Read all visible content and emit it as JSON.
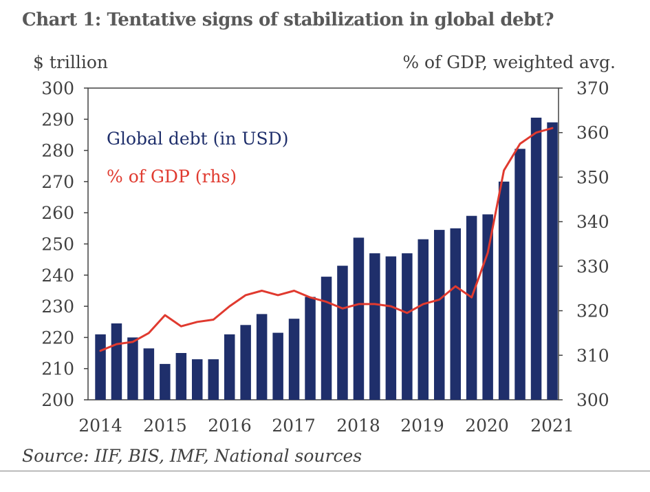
{
  "chart_data": {
    "type": "bar+line",
    "title": "Chart 1: Tentative signs of stabilization in global debt?",
    "left_axis_label": "$ trillion",
    "right_axis_label": "% of GDP, weighted avg.",
    "ylim_left": [
      200,
      300
    ],
    "ylim_right": [
      300,
      370
    ],
    "yticks_left": [
      "200",
      "210",
      "220",
      "230",
      "240",
      "250",
      "260",
      "270",
      "280",
      "290",
      "300"
    ],
    "yticks_right": [
      "300",
      "310",
      "320",
      "330",
      "340",
      "350",
      "360",
      "370"
    ],
    "x_labels": [
      "2014",
      "2015",
      "2016",
      "2017",
      "2018",
      "2019",
      "2020",
      "2021"
    ],
    "legend_position": "top-left",
    "grid": false,
    "series": [
      {
        "name": "Global debt (in USD)",
        "type": "bar",
        "axis": "left",
        "color": "#1f2f6b",
        "values": [
          221,
          224.5,
          220,
          216.5,
          211.5,
          215,
          213,
          213,
          221,
          224,
          227.5,
          221.5,
          226,
          233,
          239.5,
          243,
          252,
          247,
          246,
          247,
          251.5,
          254.5,
          255,
          259,
          259.5,
          270,
          280.5,
          290.5,
          289
        ]
      },
      {
        "name": "% of GDP (rhs)",
        "type": "line",
        "axis": "right",
        "color": "#e03a2f",
        "values": [
          311,
          312.5,
          313,
          315,
          319,
          316.5,
          317.5,
          318,
          321,
          323.5,
          324.5,
          323.5,
          324.5,
          323,
          322,
          320.5,
          321.5,
          321.5,
          321,
          319.5,
          321.5,
          322.5,
          325.5,
          323,
          333,
          351.5,
          357.5,
          360,
          361
        ]
      }
    ]
  },
  "source_text": "Source: IIF, BIS, IMF, National sources"
}
